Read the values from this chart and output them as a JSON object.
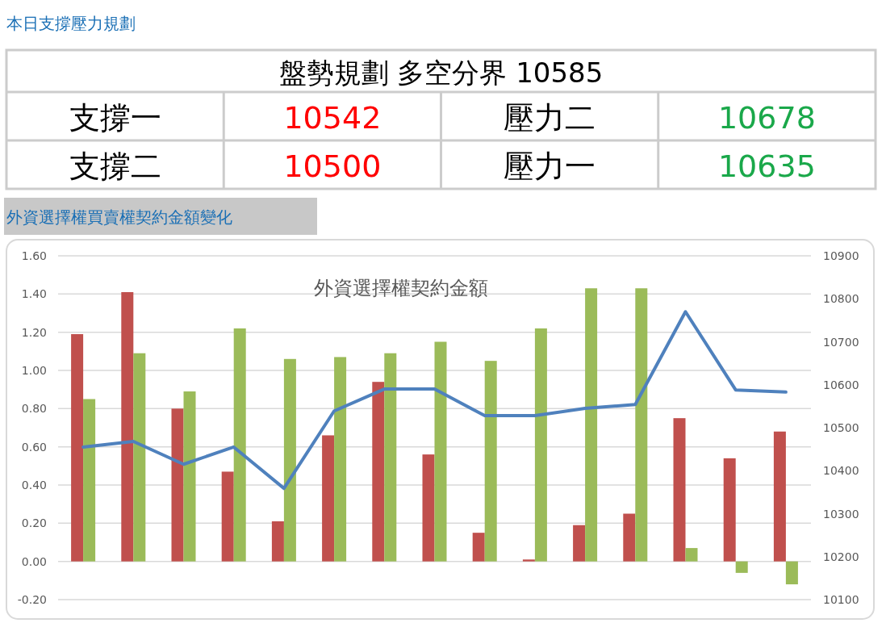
{
  "chart_data": [
    {
      "type": "other",
      "title": "本日支撐壓力規劃",
      "subtitle": "盤勢規劃 多空分界 10585",
      "annotations": [
        "支撐一",
        "10542",
        "壓力二",
        "10678",
        "支撐二",
        "10500",
        "壓力一",
        "10635"
      ],
      "colors": [
        "#000000",
        "#ff0000",
        "#000000",
        "#1aa84a",
        "#000000",
        "#ff0000",
        "#000000",
        "#1aa84a"
      ]
    },
    {
      "type": "bar",
      "subtitle": "外資選擇權買賣權契約金額變化",
      "title": "外資選擇權契約金額",
      "categories": [
        null,
        null,
        null,
        null,
        null,
        null,
        null,
        null,
        null,
        null,
        null,
        null,
        null,
        null,
        null
      ],
      "series": [
        {
          "color": "#c0504d",
          "values": [
            1.19,
            1.41,
            0.8,
            0.47,
            0.21,
            0.66,
            0.94,
            0.56,
            0.15,
            0.01,
            0.19,
            0.25,
            0.75,
            0.54,
            0.68
          ]
        },
        {
          "color": "#9bbb59",
          "values": [
            0.85,
            1.09,
            0.89,
            1.22,
            1.06,
            1.07,
            1.09,
            1.15,
            1.05,
            1.22,
            1.43,
            1.43,
            0.07,
            -0.06,
            -0.12
          ]
        },
        {
          "type": "line",
          "axis": "y2",
          "color": "#4f81bd",
          "values": [
            10455,
            10468,
            10415,
            10455,
            10359,
            10539,
            10590,
            10590,
            10528,
            10528,
            10545,
            10554,
            10770,
            10588,
            10583
          ]
        }
      ],
      "ylim": [
        -0.2,
        1.6
      ],
      "yticks": [
        {
          "value": -0.2,
          "label": "-0.20"
        },
        {
          "value": 0,
          "label": "0.00"
        },
        {
          "value": 0.2,
          "label": "0.20"
        },
        {
          "value": 0.4,
          "label": "0.40"
        },
        {
          "value": 0.6,
          "label": "0.60"
        },
        {
          "value": 0.8,
          "label": "0.80"
        },
        {
          "value": 1.0,
          "label": "1.00"
        },
        {
          "value": 1.2,
          "label": "1.20"
        },
        {
          "value": 1.4,
          "label": "1.40"
        },
        {
          "value": 1.6,
          "label": "1.60"
        }
      ],
      "y2lim": [
        10100,
        10900
      ],
      "y2ticks": [
        10100,
        10200,
        10300,
        10400,
        10500,
        10600,
        10700,
        10800,
        10900
      ],
      "grid": "y"
    }
  ]
}
